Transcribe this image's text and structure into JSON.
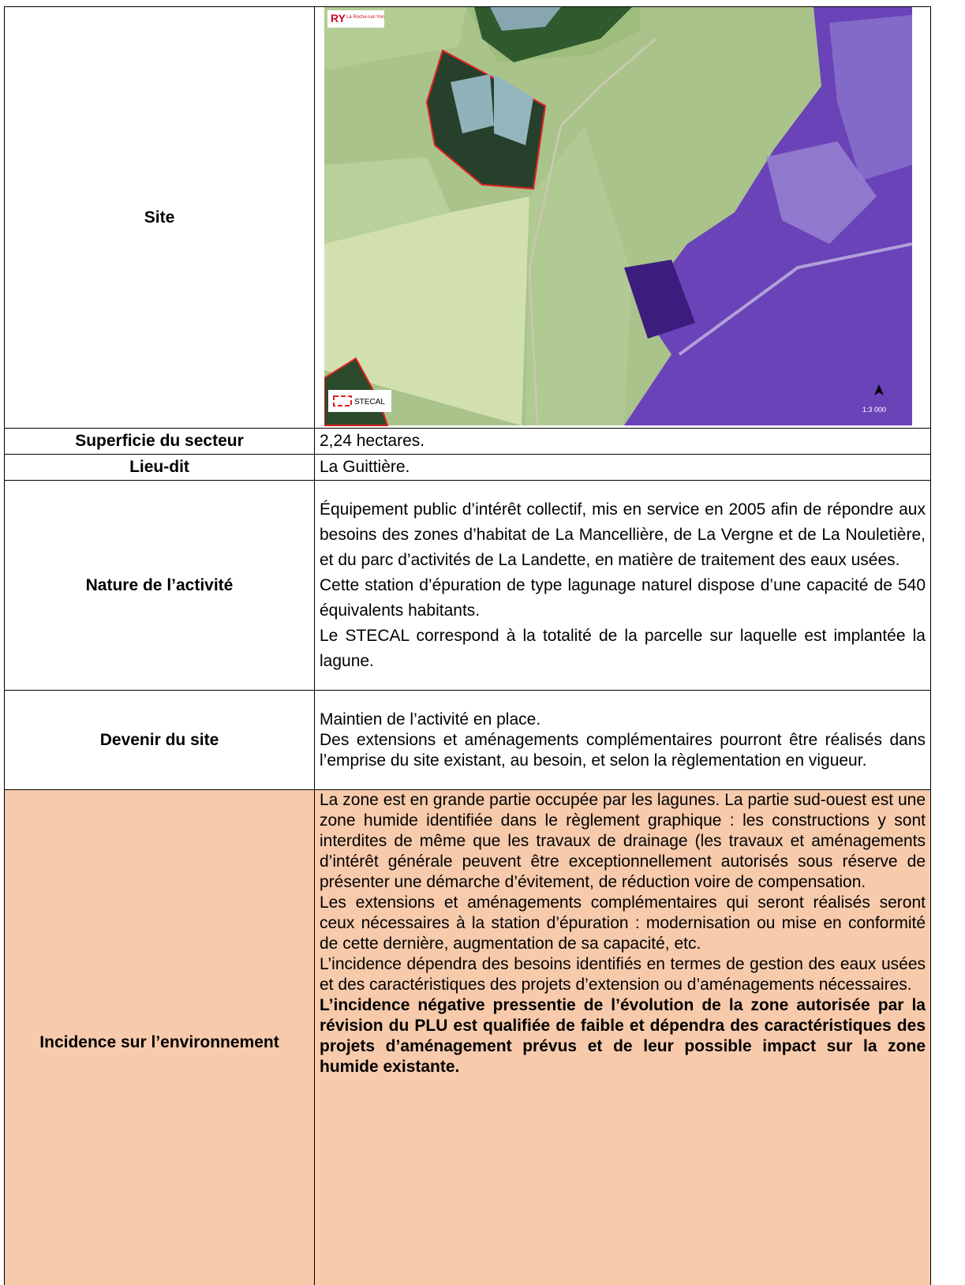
{
  "table": {
    "rows": [
      {
        "label": "Site",
        "map": {
          "logo": "La Roche-sur-Yon",
          "legend": "STECAL",
          "scale": "1:3 000"
        }
      },
      {
        "label": "Superficie du secteur",
        "paragraphs": [
          "2,24 hectares."
        ]
      },
      {
        "label": "Lieu-dit",
        "paragraphs": [
          "La Guittière."
        ]
      },
      {
        "label": "Nature de l’activité",
        "paragraphs": [
          "Équipement public d’intérêt collectif, mis en service en 2005 afin de répondre aux besoins des zones d’habitat de La Mancellière, de La Vergne et de La Nouletière, et du parc d’activités de La Landette, en matière de traitement des eaux usées.",
          "Cette station d’épuration de type lagunage naturel dispose d’une capacité de 540 équivalents habitants.",
          "Le STECAL correspond à la totalité de la parcelle sur laquelle est implantée la lagune."
        ]
      },
      {
        "label": "Devenir du site",
        "paragraphs": [
          "Maintien de l’activité en place.",
          "Des extensions et aménagements complémentaires pourront être réalisés dans l’emprise du site existant, au besoin, et selon la règlementation en vigueur."
        ]
      },
      {
        "label": "Incidence sur l’environnement",
        "paragraphs": [
          "La zone est en grande partie occupée par les lagunes. La partie sud-ouest est une zone humide identifiée dans le règlement graphique : les constructions y sont interdites de même que les travaux de drainage (les travaux et aménagements d’intérêt générale peuvent être exceptionnellement autorisés sous réserve de présenter une démarche d’évitement, de réduction voire de compensation.",
          "Les extensions et aménagements complémentaires qui seront réalisés seront ceux nécessaires à la station d’épuration : modernisation ou mise en conformité de cette dernière, augmentation de sa capacité, etc.",
          "L’incidence dépendra des besoins identifiés en termes de gestion des eaux usées et des caractéristiques des projets d’extension ou d’aménagements nécessaires."
        ],
        "conclusion": "L’incidence négative pressentie de l’évolution de la zone autorisée par la révision du PLU est qualifiée de faible et dépendra des caractéristiques des projets d’aménagement prévus et de leur possible impact sur la zone humide existante."
      }
    ]
  }
}
